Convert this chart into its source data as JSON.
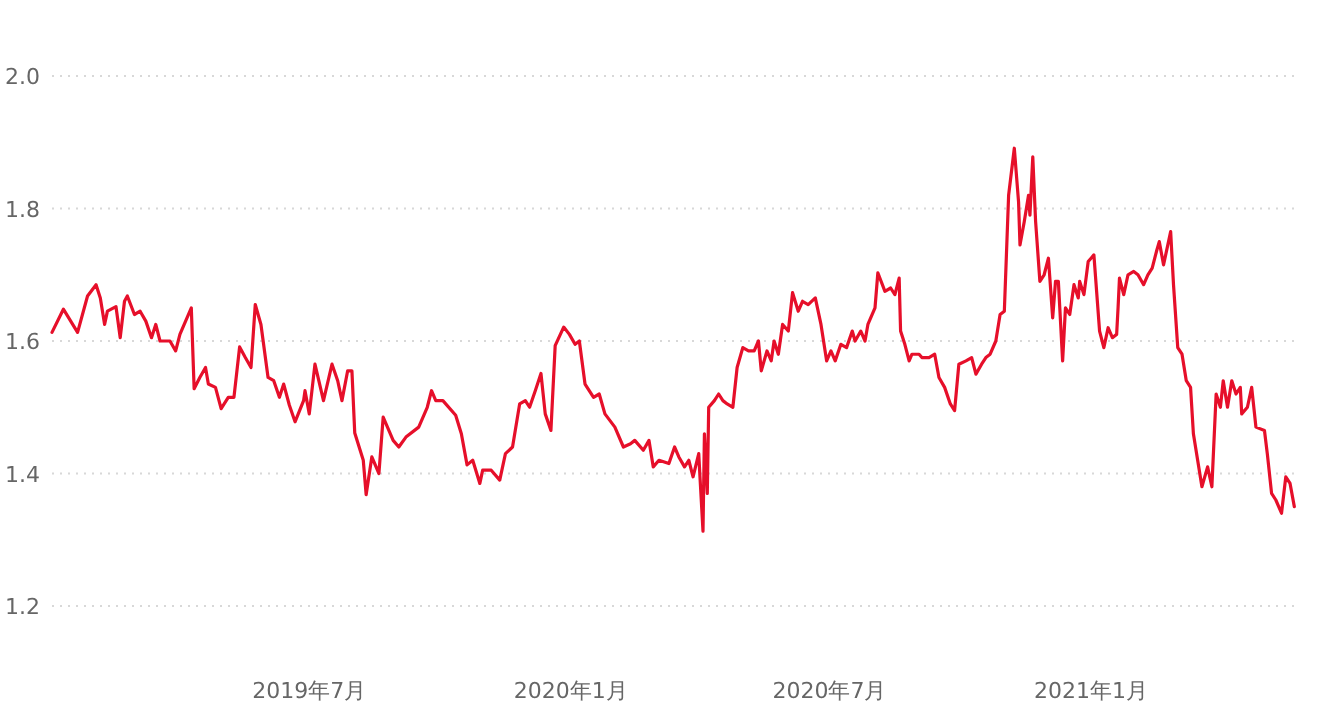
{
  "chart_data": {
    "type": "line",
    "color": "#e60f2a",
    "grid": "y",
    "marker": "none",
    "line_style": "solid",
    "xlim": [
      "2019-01-01",
      "2021-05-28"
    ],
    "ylim": [
      1.2,
      2.0
    ],
    "xticks": [
      {
        "value": "2019-07-01",
        "label": "2019年7月"
      },
      {
        "value": "2020-01-01",
        "label": "2020年1月"
      },
      {
        "value": "2020-07-01",
        "label": "2020年7月"
      },
      {
        "value": "2021-01-01",
        "label": "2021年1月"
      }
    ],
    "yticks": [
      1.2,
      1.4,
      1.6,
      1.8,
      {
        "value": 2,
        "label": "2.0"
      }
    ],
    "x": [
      "2019-01-01",
      "2019-01-09",
      "2019-01-19",
      "2019-01-26",
      "2019-02-01",
      "2019-02-04",
      "2019-02-07",
      "2019-02-09",
      "2019-02-15",
      "2019-02-18",
      "2019-02-21",
      "2019-02-23",
      "2019-02-28",
      "2019-03-04",
      "2019-03-08",
      "2019-03-12",
      "2019-03-15",
      "2019-03-18",
      "2019-03-25",
      "2019-03-29",
      "2019-04-01",
      "2019-04-09",
      "2019-04-11",
      "2019-04-15",
      "2019-04-19",
      "2019-04-21",
      "2019-04-26",
      "2019-04-30",
      "2019-05-05",
      "2019-05-09",
      "2019-05-13",
      "2019-05-17",
      "2019-05-21",
      "2019-05-24",
      "2019-05-28",
      "2019-06-02",
      "2019-06-06",
      "2019-06-10",
      "2019-06-13",
      "2019-06-17",
      "2019-06-21",
      "2019-06-27",
      "2019-06-28",
      "2019-07-01",
      "2019-07-05",
      "2019-07-11",
      "2019-07-17",
      "2019-07-21",
      "2019-07-24",
      "2019-07-28",
      "2019-07-31",
      "2019-08-02",
      "2019-08-08",
      "2019-08-10",
      "2019-08-14",
      "2019-08-19",
      "2019-08-22",
      "2019-08-29",
      "2019-09-02",
      "2019-09-07",
      "2019-09-16",
      "2019-09-22",
      "2019-09-25",
      "2019-09-28",
      "2019-10-03",
      "2019-10-12",
      "2019-10-16",
      "2019-10-20",
      "2019-10-24",
      "2019-10-29",
      "2019-10-31",
      "2019-11-06",
      "2019-11-12",
      "2019-11-16",
      "2019-11-21",
      "2019-11-26",
      "2019-11-30",
      "2019-12-03",
      "2019-12-07",
      "2019-12-11",
      "2019-12-14",
      "2019-12-18",
      "2019-12-21",
      "2019-12-27",
      "2019-12-31",
      "2020-01-04",
      "2020-01-07",
      "2020-01-11",
      "2020-01-17",
      "2020-01-21",
      "2020-01-25",
      "2020-02-01",
      "2020-02-07",
      "2020-02-12",
      "2020-02-15",
      "2020-02-21",
      "2020-02-25",
      "2020-02-28",
      "2020-03-03",
      "2020-03-10",
      "2020-03-14",
      "2020-03-17",
      "2020-03-21",
      "2020-03-24",
      "2020-03-27",
      "2020-03-31",
      "2020-04-01",
      "2020-04-03",
      "2020-04-04",
      "2020-04-06",
      "2020-04-07",
      "2020-04-11",
      "2020-04-14",
      "2020-04-17",
      "2020-04-20",
      "2020-04-24",
      "2020-04-27",
      "2020-05-01",
      "2020-05-05",
      "2020-05-09",
      "2020-05-12",
      "2020-05-14",
      "2020-05-18",
      "2020-05-21",
      "2020-05-23",
      "2020-05-26",
      "2020-05-29",
      "2020-06-02",
      "2020-06-05",
      "2020-06-09",
      "2020-06-12",
      "2020-06-16",
      "2020-06-21",
      "2020-06-25",
      "2020-06-29",
      "2020-07-02",
      "2020-07-05",
      "2020-07-09",
      "2020-07-13",
      "2020-07-17",
      "2020-07-19",
      "2020-07-23",
      "2020-07-26",
      "2020-07-28",
      "2020-08-02",
      "2020-08-04",
      "2020-08-09",
      "2020-08-13",
      "2020-08-16",
      "2020-08-19",
      "2020-08-20",
      "2020-08-23",
      "2020-08-26",
      "2020-08-28",
      "2020-09-02",
      "2020-09-04",
      "2020-09-09",
      "2020-09-13",
      "2020-09-16",
      "2020-09-20",
      "2020-09-24",
      "2020-09-27",
      "2020-09-30",
      "2020-10-05",
      "2020-10-09",
      "2020-10-12",
      "2020-10-16",
      "2020-10-19",
      "2020-10-22",
      "2020-10-26",
      "2020-10-29",
      "2020-11-01",
      "2020-11-04",
      "2020-11-08",
      "2020-11-11",
      "2020-11-12",
      "2020-11-15",
      "2020-11-18",
      "2020-11-19",
      "2020-11-21",
      "2020-11-23",
      "2020-11-26",
      "2020-11-29",
      "2020-12-02",
      "2020-12-05",
      "2020-12-07",
      "2020-12-09",
      "2020-12-12",
      "2020-12-14",
      "2020-12-17",
      "2020-12-20",
      "2020-12-23",
      "2020-12-24",
      "2020-12-27",
      "2020-12-30",
      "2021-01-01",
      "2021-01-03",
      "2021-01-07",
      "2021-01-10",
      "2021-01-13",
      "2021-01-16",
      "2021-01-19",
      "2021-01-20",
      "2021-01-21",
      "2021-01-24",
      "2021-01-27",
      "2021-01-31",
      "2021-02-03",
      "2021-02-07",
      "2021-02-10",
      "2021-02-13",
      "2021-02-16",
      "2021-02-18",
      "2021-02-21",
      "2021-02-26",
      "2021-02-28",
      "2021-03-03",
      "2021-03-06",
      "2021-03-09",
      "2021-03-12",
      "2021-03-14",
      "2021-03-17",
      "2021-03-20",
      "2021-03-24",
      "2021-03-27",
      "2021-03-30",
      "2021-04-02",
      "2021-04-04",
      "2021-04-07",
      "2021-04-10",
      "2021-04-13",
      "2021-04-16",
      "2021-04-17",
      "2021-04-21",
      "2021-04-24",
      "2021-04-27",
      "2021-05-03",
      "2021-05-05",
      "2021-05-08",
      "2021-05-11",
      "2021-05-15",
      "2021-05-18",
      "2021-05-21",
      "2021-05-24"
    ],
    "values": [
      1.613,
      1.648,
      1.613,
      1.668,
      1.685,
      1.665,
      1.625,
      1.645,
      1.652,
      1.605,
      1.66,
      1.668,
      1.64,
      1.645,
      1.63,
      1.605,
      1.625,
      1.6,
      1.6,
      1.585,
      1.61,
      1.65,
      1.528,
      1.545,
      1.56,
      1.535,
      1.53,
      1.498,
      1.515,
      1.515,
      1.591,
      1.575,
      1.56,
      1.655,
      1.625,
      1.545,
      1.54,
      1.515,
      1.535,
      1.503,
      1.478,
      1.51,
      1.525,
      1.49,
      1.565,
      1.51,
      1.565,
      1.54,
      1.51,
      1.555,
      1.555,
      1.461,
      1.42,
      1.368,
      1.425,
      1.4,
      1.485,
      1.45,
      1.44,
      1.455,
      1.47,
      1.5,
      1.525,
      1.51,
      1.51,
      1.488,
      1.46,
      1.413,
      1.42,
      1.385,
      1.405,
      1.405,
      1.39,
      1.43,
      1.44,
      1.505,
      1.51,
      1.5,
      1.525,
      1.551,
      1.49,
      1.465,
      1.593,
      1.621,
      1.61,
      1.595,
      1.6,
      1.535,
      1.515,
      1.52,
      1.49,
      1.47,
      1.44,
      1.445,
      1.45,
      1.435,
      1.45,
      1.41,
      1.42,
      1.415,
      1.44,
      1.425,
      1.41,
      1.42,
      1.395,
      1.43,
      1.39,
      1.313,
      1.46,
      1.37,
      1.5,
      1.51,
      1.52,
      1.51,
      1.505,
      1.5,
      1.56,
      1.59,
      1.585,
      1.585,
      1.6,
      1.555,
      1.585,
      1.57,
      1.6,
      1.58,
      1.625,
      1.615,
      1.673,
      1.645,
      1.66,
      1.655,
      1.665,
      1.625,
      1.57,
      1.585,
      1.57,
      1.595,
      1.59,
      1.615,
      1.6,
      1.615,
      1.6,
      1.625,
      1.65,
      1.703,
      1.675,
      1.68,
      1.67,
      1.695,
      1.615,
      1.595,
      1.57,
      1.58,
      1.58,
      1.575,
      1.575,
      1.58,
      1.545,
      1.53,
      1.505,
      1.495,
      1.565,
      1.57,
      1.575,
      1.55,
      1.565,
      1.575,
      1.58,
      1.6,
      1.64,
      1.645,
      1.82,
      1.891,
      1.81,
      1.745,
      1.78,
      1.82,
      1.79,
      1.878,
      1.78,
      1.69,
      1.7,
      1.725,
      1.635,
      1.69,
      1.69,
      1.57,
      1.65,
      1.64,
      1.685,
      1.665,
      1.69,
      1.67,
      1.72,
      1.725,
      1.73,
      1.615,
      1.59,
      1.62,
      1.605,
      1.61,
      1.65,
      1.695,
      1.67,
      1.7,
      1.705,
      1.7,
      1.685,
      1.7,
      1.71,
      1.735,
      1.75,
      1.715,
      1.765,
      1.685,
      1.59,
      1.58,
      1.54,
      1.53,
      1.46,
      1.42,
      1.38,
      1.41,
      1.38,
      1.52,
      1.5,
      1.54,
      1.5,
      1.54,
      1.52,
      1.53,
      1.49,
      1.5,
      1.53,
      1.47,
      1.465,
      1.43,
      1.37,
      1.36,
      1.34,
      1.395,
      1.385,
      1.35
    ]
  }
}
